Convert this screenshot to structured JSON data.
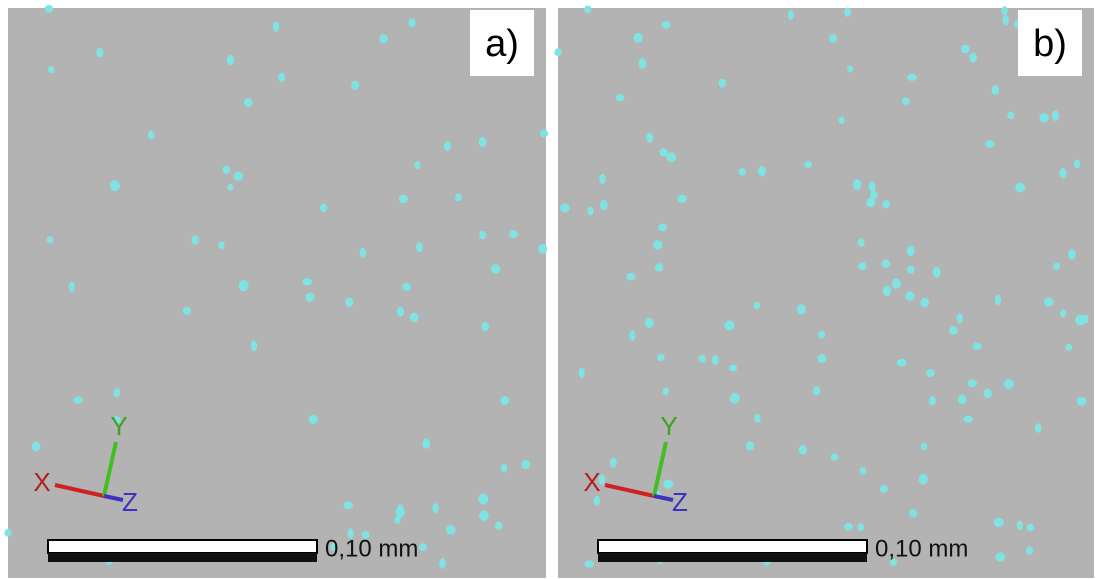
{
  "panels": [
    {
      "label": "a)",
      "axes": {
        "x": "X",
        "y": "Y",
        "z": "Z"
      },
      "scale_bar": "0,10 mm"
    },
    {
      "label": "b)",
      "axes": {
        "x": "X",
        "y": "Y",
        "z": "Z"
      },
      "scale_bar": "0,10 mm"
    }
  ]
}
